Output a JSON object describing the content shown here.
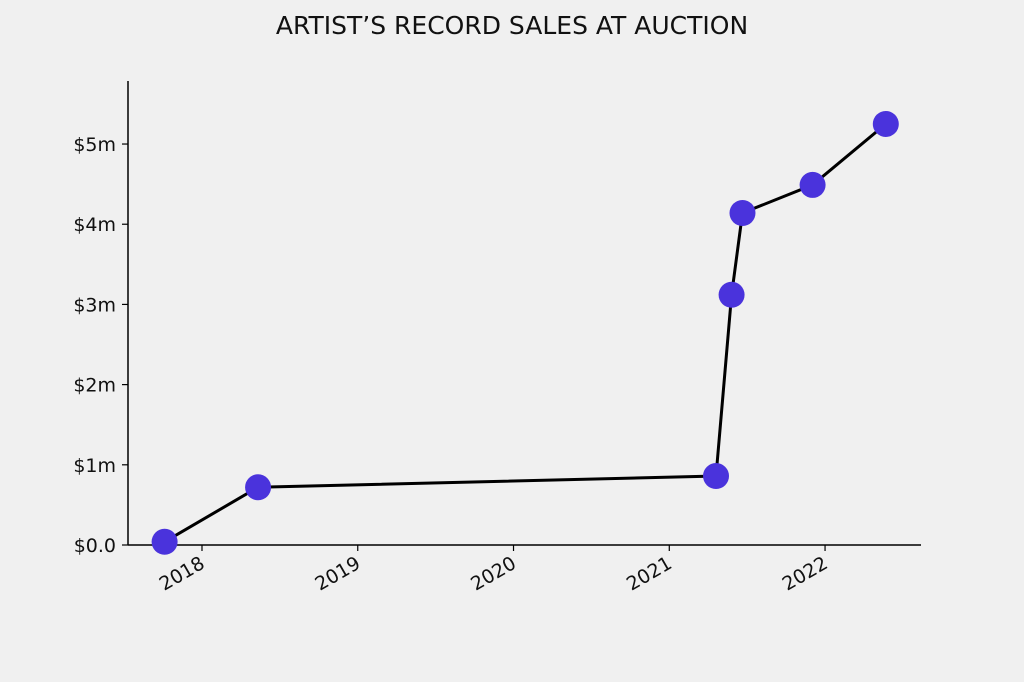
{
  "chart_data": {
    "type": "line",
    "title": "ARTIST’S RECORD SALES AT AUCTION",
    "x": [
      2017.76,
      2018.36,
      2021.3,
      2021.4,
      2021.47,
      2021.92,
      2022.39
    ],
    "series": [
      {
        "color": "#4a33dc",
        "line_color": "#000000",
        "values": [
          0.04,
          0.72,
          0.86,
          3.12,
          4.14,
          4.49,
          5.25
        ]
      }
    ],
    "xlim": [
      2017.525,
      2022.616
    ],
    "xticks": [
      2018,
      2019,
      2020,
      2021,
      2022
    ],
    "ylim": [
      0,
      5.786
    ],
    "yticks": [
      {
        "value": 0,
        "label": "$0.0"
      },
      {
        "value": 1,
        "label": "$1m"
      },
      {
        "value": 2,
        "label": "$2m"
      },
      {
        "value": 3,
        "label": "$3m"
      },
      {
        "value": 4,
        "label": "$4m"
      },
      {
        "value": 5,
        "label": "$5m"
      }
    ],
    "grid": false
  }
}
